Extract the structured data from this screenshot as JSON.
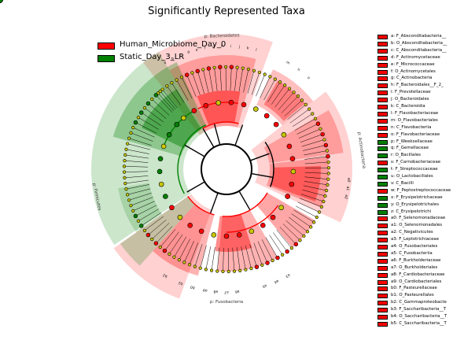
{
  "title": "Significantly Represented Taxa",
  "colors": {
    "red": "#ff0000",
    "green": "#008000",
    "yellow": "#c8c800",
    "red_fill": "#ff3030",
    "green_fill": "#2a8f2a"
  },
  "groups": [
    {
      "label": "Human_Microbiome_Day_0",
      "color": "#ff0000"
    },
    {
      "label": "Static_Day_3_LR",
      "color": "#008000"
    }
  ],
  "clade_labels": [
    {
      "text": "p: Bacteroidetes"
    },
    {
      "text": "p: Actinobacteria"
    },
    {
      "text": "p: Firmicutes"
    },
    {
      "text": "p: Fusobacteria"
    }
  ],
  "taxa": [
    {
      "key": "a",
      "label": "a: F_Absconditabacteria__",
      "group": "red"
    },
    {
      "key": "b",
      "label": "b: O_Absconditabacteria__",
      "group": "red"
    },
    {
      "key": "c",
      "label": "c: C_Absconditabacteria__",
      "group": "red"
    },
    {
      "key": "d",
      "label": "d: F_Actinomycetaceae",
      "group": "red"
    },
    {
      "key": "e",
      "label": "e: F_Micrococcaceae",
      "group": "red"
    },
    {
      "key": "f",
      "label": "f: O_Actinomycetales",
      "group": "red"
    },
    {
      "key": "g",
      "label": "g: C_Actinobacteria",
      "group": "red"
    },
    {
      "key": "h",
      "label": "h: F_Bacteroidales__F_2_",
      "group": "red"
    },
    {
      "key": "i",
      "label": "i: F_Prevotellaceae",
      "group": "red"
    },
    {
      "key": "j",
      "label": "j: O_Bacteroidales",
      "group": "red"
    },
    {
      "key": "k",
      "label": "k: C_Bacteroidia",
      "group": "red"
    },
    {
      "key": "l",
      "label": "l: F_Flavobacteriaceae",
      "group": "red"
    },
    {
      "key": "m",
      "label": "m: O_Flavobacteriales",
      "group": "red"
    },
    {
      "key": "n",
      "label": "n: C_Flavobacteriia",
      "group": "red"
    },
    {
      "key": "o",
      "label": "o: F_Flavobacteriaceae",
      "group": "red"
    },
    {
      "key": "p",
      "label": "p: F_Weeksellaceae",
      "group": "green"
    },
    {
      "key": "q",
      "label": "q: F_Gemellaceae",
      "group": "green"
    },
    {
      "key": "r",
      "label": "r: O_Bacillales",
      "group": "green"
    },
    {
      "key": "s",
      "label": "s: F_Carnobacteriaceae",
      "group": "red"
    },
    {
      "key": "t",
      "label": "t: F_Streptococcaceae",
      "group": "green"
    },
    {
      "key": "u",
      "label": "u: O_Lactobacillales",
      "group": "green"
    },
    {
      "key": "v",
      "label": "v: C_Bacilli",
      "group": "green"
    },
    {
      "key": "w",
      "label": "w: F_Peptostreptococcaceae",
      "group": "red"
    },
    {
      "key": "x",
      "label": "x: F_Erysipelotrichaceae",
      "group": "green"
    },
    {
      "key": "y",
      "label": "y: O_Erysipelotrichales",
      "group": "green"
    },
    {
      "key": "z",
      "label": "z: C_Erysipelotrichi",
      "group": "green"
    },
    {
      "key": "a0",
      "label": "a0: F_Selenomonadaceae",
      "group": "red"
    },
    {
      "key": "a1",
      "label": "a1: O_Selenomonadales",
      "group": "red"
    },
    {
      "key": "a2",
      "label": "a2: C_Negativicutes",
      "group": "red"
    },
    {
      "key": "a3",
      "label": "a3: F_Leptotrichiaceae",
      "group": "red"
    },
    {
      "key": "a4",
      "label": "a4: O_Fusobacteriales",
      "group": "red"
    },
    {
      "key": "a5",
      "label": "a5: C_Fusobacteriia",
      "group": "red"
    },
    {
      "key": "a6",
      "label": "a6: F_Burkholderiaceae",
      "group": "red"
    },
    {
      "key": "a7",
      "label": "a7: O_Burkholderiales",
      "group": "red"
    },
    {
      "key": "a8",
      "label": "a8: F_Cardiobacteriaceae",
      "group": "red"
    },
    {
      "key": "a9",
      "label": "a9: O_Cardiobacteriales",
      "group": "red"
    },
    {
      "key": "b0",
      "label": "b0: F_Pasteurellaceae",
      "group": "red"
    },
    {
      "key": "b1",
      "label": "b1: O_Pasteurellales",
      "group": "red"
    },
    {
      "key": "b2",
      "label": "b2: C_Gammaproteobacte",
      "group": "red"
    },
    {
      "key": "b3",
      "label": "b3: F_Saccharibacteria__T",
      "group": "red"
    },
    {
      "key": "b4",
      "label": "b4: O_Saccharibacteria__T",
      "group": "red"
    },
    {
      "key": "b5",
      "label": "b5: C_Saccharibacteria__T",
      "group": "red"
    }
  ],
  "arc_letters": [
    {
      "text": "a"
    },
    {
      "text": "b"
    },
    {
      "text": "c"
    },
    {
      "text": "d"
    },
    {
      "text": "e"
    },
    {
      "text": "f"
    },
    {
      "text": "g"
    },
    {
      "text": "h"
    },
    {
      "text": "i"
    },
    {
      "text": "j"
    },
    {
      "text": "k"
    },
    {
      "text": "l"
    },
    {
      "text": "m"
    },
    {
      "text": "n"
    },
    {
      "text": "o"
    },
    {
      "text": "a0"
    },
    {
      "text": "a1"
    },
    {
      "text": "a2"
    },
    {
      "text": "a3"
    },
    {
      "text": "a4"
    },
    {
      "text": "a5"
    },
    {
      "text": "a6"
    },
    {
      "text": "a7"
    },
    {
      "text": "a8"
    },
    {
      "text": "a9"
    },
    {
      "text": "b0"
    },
    {
      "text": "b1"
    },
    {
      "text": "b2"
    }
  ]
}
